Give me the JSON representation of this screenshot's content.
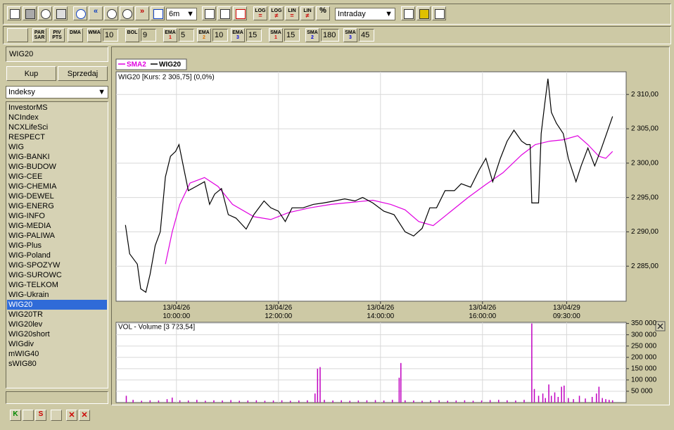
{
  "toolbar": {
    "period": "6m",
    "interval": "Intraday",
    "scale_buttons": [
      {
        "label": "LOG",
        "sub": "="
      },
      {
        "label": "LOG",
        "sub": "≠"
      },
      {
        "label": "LIN",
        "sub": "="
      },
      {
        "label": "LIN",
        "sub": "≠"
      },
      {
        "label": "%"
      }
    ]
  },
  "indicators": [
    {
      "label": "PAR SAR"
    },
    {
      "label": "PIV PTS"
    },
    {
      "label": "DMA"
    },
    {
      "label": "WMA",
      "param": "10"
    },
    {
      "label": "BOL",
      "param": "9"
    },
    {
      "label": "EMA",
      "sub": "1",
      "sub_color": "#e00000",
      "param": "5"
    },
    {
      "label": "EMA",
      "sub": "2",
      "sub_color": "#e07000",
      "param": "10"
    },
    {
      "label": "EMA",
      "sub": "3",
      "sub_color": "#0000e0",
      "param": "15"
    },
    {
      "label": "SMA",
      "sub": "1",
      "sub_color": "#e00000",
      "param": "15"
    },
    {
      "label": "SMA",
      "sub": "2",
      "sub_color": "#0000e0",
      "param": "180"
    },
    {
      "label": "SMA",
      "sub": "3",
      "sub_color": "#0000e0",
      "param": "45"
    }
  ],
  "sidebar": {
    "symbol": "WIG20",
    "buy": "Kup",
    "sell": "Sprzedaj",
    "group": "Indeksy",
    "selected_index": 20,
    "items": [
      "InvestorMS",
      "NCIndex",
      "NCXLifeSci",
      "RESPECT",
      "WIG",
      "WIG-BANKI",
      "WIG-BUDOW",
      "WIG-CEE",
      "WIG-CHEMIA",
      "WIG-DEWEL",
      "WIG-ENERG",
      "WIG-INFO",
      "WIG-MEDIA",
      "WIG-PALIWA",
      "WIG-Plus",
      "WIG-Poland",
      "WIG-SPOZYW",
      "WIG-SUROWC",
      "WIG-TELKOM",
      "WIG-Ukrain",
      "WIG20",
      "WIG20TR",
      "WIG20lev",
      "WIG20short",
      "WIGdiv",
      "mWIG40",
      "sWIG80"
    ]
  },
  "chart_data": [
    {
      "type": "line",
      "title": "WIG20 [Kurs: 2 306,75] (0,0%)",
      "series": [
        {
          "name": "SMA2",
          "color": "#e000e0",
          "x": [
            58,
            66,
            75,
            87,
            104,
            120,
            137,
            162,
            182,
            203,
            228,
            253,
            278,
            302,
            323,
            340,
            356,
            373,
            394,
            414,
            435,
            455,
            477,
            493,
            510,
            526,
            543,
            555,
            568,
            576,
            584
          ],
          "values": [
            2285.3,
            2290,
            2294,
            2297.1,
            2297.9,
            2296.6,
            2294,
            2292.2,
            2291.8,
            2292.8,
            2293.5,
            2294,
            2294.3,
            2294.6,
            2294,
            2293.2,
            2291.5,
            2290.9,
            2293,
            2295,
            2296.9,
            2298.6,
            2301.2,
            2302.7,
            2303.2,
            2303.4,
            2304,
            2302.7,
            2301,
            2300.7,
            2301.7
          ]
        },
        {
          "name": "WIG20",
          "color": "#000000",
          "x": [
            11,
            16,
            25,
            29,
            35,
            40,
            46,
            52,
            58,
            64,
            70,
            74,
            80,
            85,
            94,
            104,
            110,
            116,
            124,
            132,
            141,
            153,
            162,
            174,
            182,
            191,
            199,
            207,
            220,
            232,
            244,
            257,
            269,
            281,
            290,
            302,
            315,
            327,
            340,
            350,
            360,
            369,
            377,
            387,
            398,
            406,
            417,
            427,
            435,
            443,
            452,
            460,
            468,
            477,
            483,
            487,
            489,
            497,
            500,
            504,
            508,
            512,
            518,
            526,
            532,
            541,
            547,
            555,
            563,
            571,
            577,
            584
          ],
          "values": [
            2291,
            2286.8,
            2285.3,
            2281.7,
            2281.2,
            2283.8,
            2288,
            2290,
            2298,
            2301,
            2301.7,
            2302.7,
            2299,
            2296,
            2296.6,
            2297.3,
            2294,
            2295.5,
            2296.3,
            2292.5,
            2292,
            2290.4,
            2292.5,
            2294.5,
            2293.5,
            2293,
            2291.5,
            2293.5,
            2293.5,
            2294,
            2294.2,
            2294.5,
            2294.8,
            2294.5,
            2295,
            2294.2,
            2293,
            2292.5,
            2290,
            2289.4,
            2290.5,
            2293.5,
            2293.5,
            2296,
            2296,
            2297,
            2296.5,
            2299,
            2300.7,
            2297.3,
            2300.7,
            2303.2,
            2304.8,
            2303.2,
            2302.7,
            2302.7,
            2294.2,
            2294.2,
            2304.3,
            2308.4,
            2312.3,
            2307.4,
            2305.8,
            2304.3,
            2300.7,
            2297.3,
            2299.6,
            2302.2,
            2299.6,
            2302.2,
            2304.3,
            2306.8
          ]
        }
      ],
      "xlim": [
        0,
        600
      ],
      "xticks": [
        {
          "value": 71,
          "label": "13/04/26\n10:00:00"
        },
        {
          "value": 191,
          "label": "13/04/26\n12:00:00"
        },
        {
          "value": 311,
          "label": "13/04/26\n14:00:00"
        },
        {
          "value": 431,
          "label": "13/04/26\n16:00:00"
        },
        {
          "value": 530,
          "label": "13/04/29\n09:30:00"
        }
      ],
      "ylim": [
        2279.9,
        2313.3
      ],
      "yticks": [
        {
          "value": 2285,
          "label": "2 285,00"
        },
        {
          "value": 2290,
          "label": "2 290,00"
        },
        {
          "value": 2295,
          "label": "2 295,00"
        },
        {
          "value": 2300,
          "label": "2 300,00"
        },
        {
          "value": 2305,
          "label": "2 305,00"
        },
        {
          "value": 2310,
          "label": "2 310,00"
        }
      ],
      "grid": true
    },
    {
      "type": "bar",
      "title": "VOL - Volume [3 723,54]",
      "color": "#c000c0",
      "x": [
        12,
        20,
        30,
        40,
        50,
        60,
        66,
        75,
        85,
        95,
        105,
        115,
        125,
        135,
        145,
        155,
        165,
        175,
        185,
        195,
        205,
        215,
        225,
        234,
        237,
        240,
        245,
        255,
        265,
        275,
        285,
        295,
        305,
        315,
        325,
        333,
        335,
        340,
        350,
        360,
        370,
        380,
        390,
        400,
        410,
        420,
        430,
        440,
        450,
        460,
        470,
        480,
        489,
        492,
        497,
        502,
        505,
        509,
        512,
        516,
        520,
        524,
        527,
        532,
        538,
        545,
        552,
        560,
        565,
        568,
        572,
        576,
        580,
        584
      ],
      "values": [
        30000,
        12000,
        8000,
        10000,
        9000,
        15000,
        22000,
        10000,
        9000,
        12000,
        8000,
        10000,
        9000,
        11000,
        8000,
        9000,
        10000,
        8000,
        9000,
        10000,
        8000,
        9000,
        10000,
        40000,
        150000,
        157000,
        12000,
        9000,
        10000,
        8000,
        9000,
        10000,
        11000,
        9000,
        12000,
        110000,
        175000,
        10000,
        9000,
        8000,
        9000,
        10000,
        8000,
        9000,
        10000,
        8000,
        9000,
        11000,
        12000,
        10000,
        9000,
        12000,
        350000,
        60000,
        30000,
        40000,
        20000,
        80000,
        30000,
        45000,
        25000,
        70000,
        75000,
        20000,
        15000,
        30000,
        18000,
        25000,
        40000,
        70000,
        20000,
        15000,
        12000,
        10000
      ],
      "xlim": [
        0,
        600
      ],
      "ylim": [
        0,
        355000
      ],
      "yticks": [
        {
          "value": 50000,
          "label": "50 000"
        },
        {
          "value": 100000,
          "label": "100 000"
        },
        {
          "value": 150000,
          "label": "150 000"
        },
        {
          "value": 200000,
          "label": "200 000"
        },
        {
          "value": 250000,
          "label": "250 000"
        },
        {
          "value": 300000,
          "label": "300 000"
        },
        {
          "value": 350000,
          "label": "350 000"
        }
      ],
      "grid": true
    }
  ]
}
